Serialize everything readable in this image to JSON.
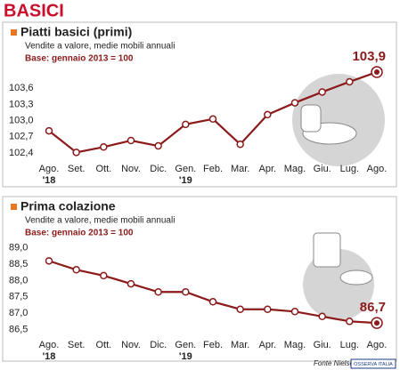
{
  "header": "BASICI",
  "source": "Fonte Nielsen",
  "logo": "OSSERVA ITALIA",
  "chart_data": [
    {
      "type": "line",
      "title": "Piatti basici (primi)",
      "subtitle": "Vendite a valore, medie mobili annuali",
      "base_note": "Base: gennaio 2013 = 100",
      "categories": [
        "Ago.",
        "Set.",
        "Ott.",
        "Nov.",
        "Dic.",
        "Gen.",
        "Feb.",
        "Mar.",
        "Apr.",
        "Mag.",
        "Giu.",
        "Lug.",
        "Ago."
      ],
      "year_labels": [
        {
          "category": 0,
          "label": "'18"
        },
        {
          "category": 5,
          "label": "'19"
        }
      ],
      "series": [
        {
          "color": "#8b1a1a",
          "values": [
            102.81,
            102.41,
            102.51,
            102.63,
            102.53,
            102.93,
            103.03,
            102.56,
            103.11,
            103.33,
            103.53,
            103.72,
            103.9
          ],
          "value_labels": [
            null,
            null,
            null,
            null,
            null,
            null,
            null,
            null,
            null,
            null,
            null,
            null,
            "103,9"
          ]
        }
      ],
      "ylim": [
        102.3,
        103.95
      ],
      "yticks": [
        {
          "value": 102.4,
          "label": "102,4"
        },
        {
          "value": 102.7,
          "label": "102,7"
        },
        {
          "value": 103.0,
          "label": "103,0"
        },
        {
          "value": 103.3,
          "label": "103,3"
        },
        {
          "value": 103.6,
          "label": "103,6"
        }
      ],
      "grid": false
    },
    {
      "type": "line",
      "title": "Prima colazione",
      "subtitle": "Vendite a valore, medie mobili annuali",
      "base_note": "Base: gennaio 2013 = 100",
      "categories": [
        "Ago.",
        "Set.",
        "Ott.",
        "Nov.",
        "Dic.",
        "Gen.",
        "Feb.",
        "Mar.",
        "Apr.",
        "Mag.",
        "Giu.",
        "Lug.",
        "Ago."
      ],
      "year_labels": [
        {
          "category": 0,
          "label": "'18"
        },
        {
          "category": 5,
          "label": "'19"
        }
      ],
      "series": [
        {
          "color": "#8b1a1a",
          "values": [
            88.6,
            88.33,
            88.15,
            87.9,
            87.65,
            87.65,
            87.35,
            87.12,
            87.12,
            87.05,
            86.9,
            86.75,
            86.7
          ],
          "value_labels": [
            null,
            null,
            null,
            null,
            null,
            null,
            null,
            null,
            null,
            null,
            null,
            null,
            "86,7"
          ]
        }
      ],
      "ylim": [
        86.35,
        89.1
      ],
      "yticks": [
        {
          "value": 86.5,
          "label": "86,5"
        },
        {
          "value": 87.0,
          "label": "87,0"
        },
        {
          "value": 87.5,
          "label": "87,5"
        },
        {
          "value": 88.0,
          "label": "88,0"
        },
        {
          "value": 88.5,
          "label": "88,5"
        },
        {
          "value": 89.0,
          "label": "89,0"
        }
      ],
      "grid": false
    }
  ]
}
